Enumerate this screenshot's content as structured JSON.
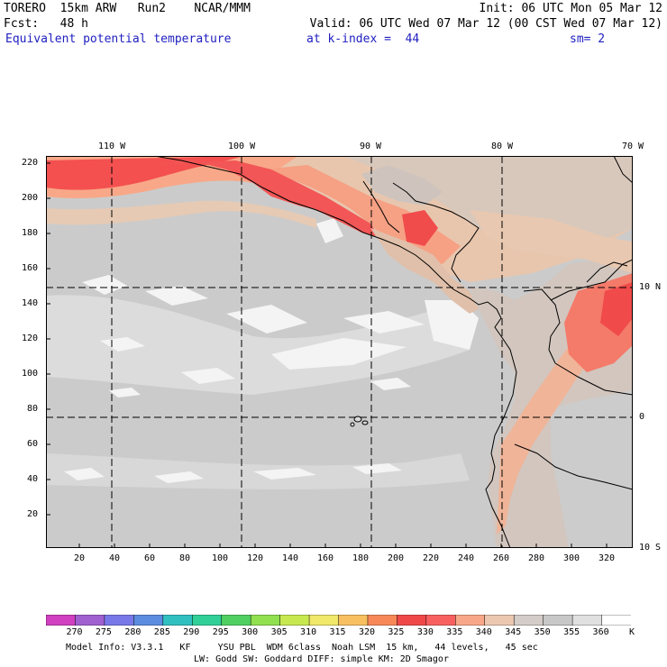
{
  "header": {
    "line1_left": "TORERO  15km ARW   Run2    NCAR/MMM",
    "line1_right": "Init: 06 UTC Mon 05 Mar 12",
    "line2_left": "Fcst:   48 h",
    "line2_right": "Valid: 06 UTC Wed 07 Mar 12 (00 CST Wed 07 Mar 12)",
    "field_name": "Equivalent potential temperature",
    "level": "at k-index =  44",
    "smoothing": "sm= 2"
  },
  "map": {
    "top_lon_labels": [
      "110 W",
      "100 W",
      "90 W",
      "80 W",
      "70 W"
    ],
    "right_lat_labels": [
      "10 N",
      "0",
      "10 S"
    ],
    "left_grid_labels": [
      "220",
      "200",
      "180",
      "160",
      "140",
      "120",
      "100",
      "80",
      "60",
      "40",
      "20"
    ],
    "bottom_grid_labels": [
      "20",
      "40",
      "60",
      "80",
      "100",
      "120",
      "140",
      "160",
      "180",
      "200",
      "220",
      "240",
      "260",
      "280",
      "300",
      "320"
    ]
  },
  "colorbar": {
    "labels": [
      "270",
      "275",
      "280",
      "285",
      "290",
      "295",
      "300",
      "305",
      "310",
      "315",
      "320",
      "325",
      "330",
      "335",
      "340",
      "345",
      "350",
      "355",
      "360"
    ],
    "unit": "K",
    "colors": [
      "#d040c0",
      "#a060d0",
      "#7878e8",
      "#5c8ce0",
      "#30c0c0",
      "#30d098",
      "#50d060",
      "#90e050",
      "#c8e850",
      "#f0e868",
      "#f8c060",
      "#f88858",
      "#f04848",
      "#f86060",
      "#f8a888",
      "#ecc8b0",
      "#d4ccc8",
      "#c8c8c8",
      "#e0e0e0",
      "#ffffff"
    ]
  },
  "footer": {
    "line1": "Model Info: V3.3.1   KF     YSU PBL  WDM 6class  Noah LSM  15 km,   44 levels,   45 sec",
    "line2": "LW: Godd SW: Goddard DIFF: simple KM: 2D Smagor"
  }
}
